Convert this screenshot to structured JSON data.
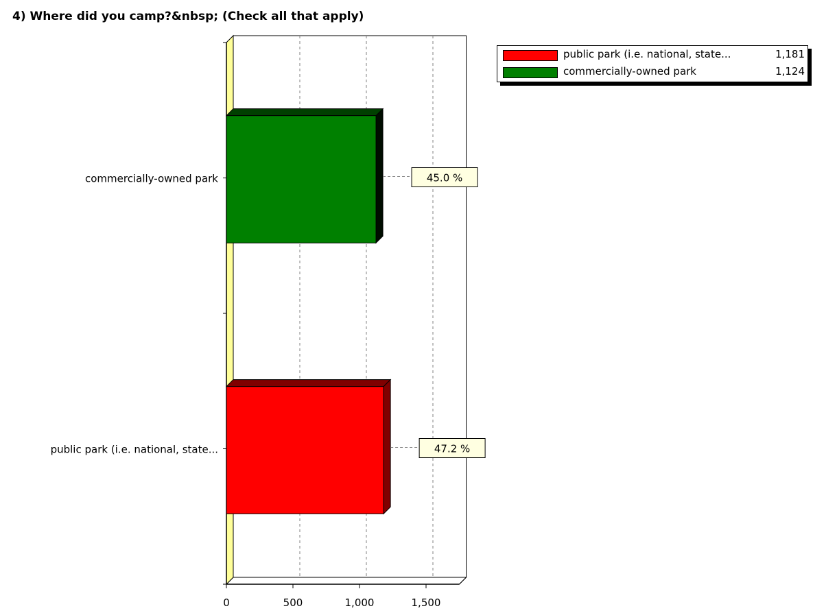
{
  "chart_data": {
    "type": "bar",
    "orientation": "horizontal",
    "title": "4) Where did you camp?&nbsp; (Check all that apply)",
    "categories": [
      "commercially-owned park",
      "public park (i.e. national, state..."
    ],
    "series": [
      {
        "values": [
          1124,
          1181
        ],
        "percent_labels": [
          "45.0 %",
          "47.2 %"
        ],
        "colors": [
          "#008000",
          "#ff0000"
        ]
      }
    ],
    "xlim": [
      0,
      1750
    ],
    "x_ticks": [
      0,
      500,
      1000,
      1500
    ],
    "x_tick_labels": [
      "0",
      "500",
      "1,000",
      "1,500"
    ],
    "grid": "vertical dashed",
    "legend": {
      "placement": "top-right",
      "entries": [
        {
          "label": "public park (i.e. national, state...",
          "value": "1,181",
          "color": "#ff0000"
        },
        {
          "label": "commercially-owned park",
          "value": "1,124",
          "color": "#008000"
        }
      ]
    }
  }
}
